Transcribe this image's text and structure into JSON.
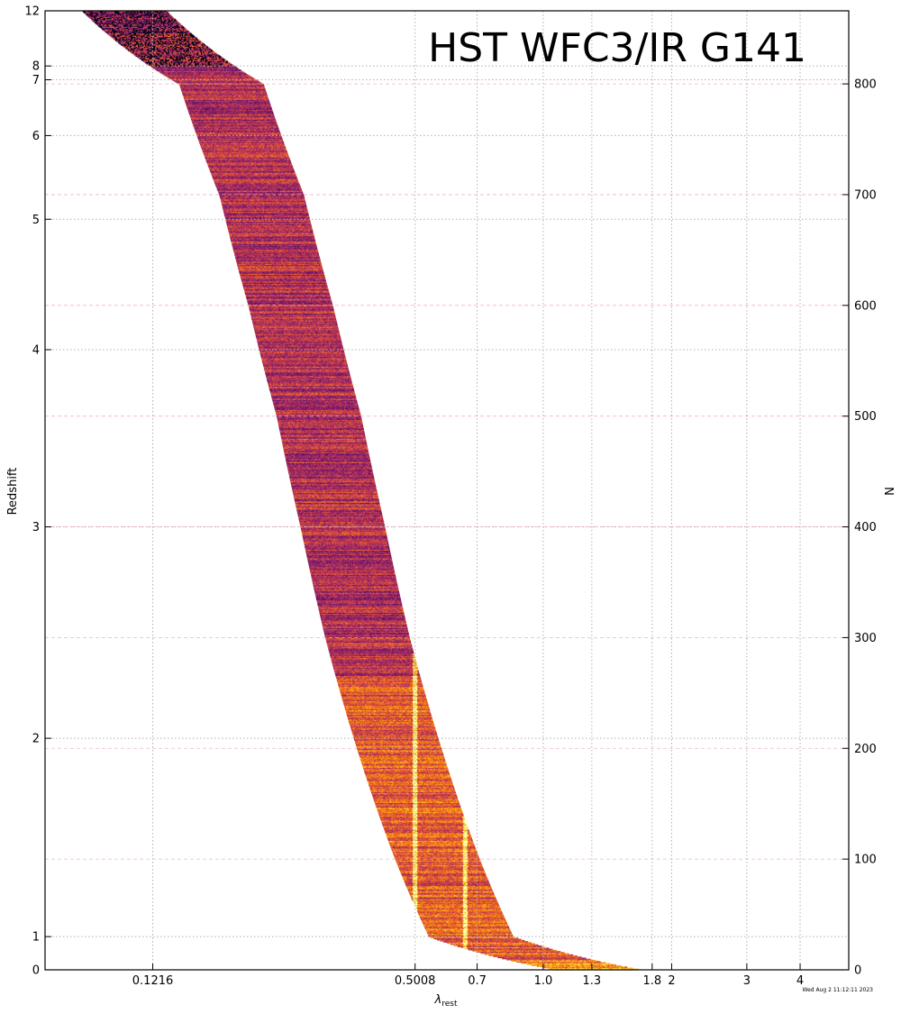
{
  "chart_data": {
    "type": "heatmap",
    "title": "HST WFC3/IR G141",
    "xlabel": "λ",
    "xlabel_subscript": "rest",
    "ylabel": "Redshift",
    "ylabel_right": "N",
    "timestamp": "Wed Aug  2 11:12:11 2023",
    "x_scale": "log",
    "xlim": [
      0.068,
      5.2
    ],
    "x_ticks": [
      {
        "value": 0.1216,
        "label": "0.1216"
      },
      {
        "value": 0.5008,
        "label": "0.5008"
      },
      {
        "value": 0.7,
        "label": "0.7"
      },
      {
        "value": 1.0,
        "label": "1.0"
      },
      {
        "value": 1.3,
        "label": "1.3"
      },
      {
        "value": 1.8,
        "label": "1.8"
      },
      {
        "value": 2.0,
        "label": "2"
      },
      {
        "value": 3.0,
        "label": "3"
      },
      {
        "value": 4.0,
        "label": "4"
      }
    ],
    "y_left_ticks": [
      {
        "z": 0,
        "label": "0"
      },
      {
        "z": 1,
        "label": "1"
      },
      {
        "z": 2,
        "label": "2"
      },
      {
        "z": 3,
        "label": "3"
      },
      {
        "z": 4,
        "label": "4"
      },
      {
        "z": 5,
        "label": "5"
      },
      {
        "z": 6,
        "label": "6"
      },
      {
        "z": 7,
        "label": "7"
      },
      {
        "z": 8,
        "label": "8"
      },
      {
        "z": 12,
        "label": "12"
      }
    ],
    "n_total": 866,
    "y_right_ticks": [
      0,
      100,
      200,
      300,
      400,
      500,
      600,
      700,
      800
    ],
    "redshift_at_n": [
      [
        0,
        0.0
      ],
      [
        30,
        1.0
      ],
      [
        100,
        1.4
      ],
      [
        200,
        1.95
      ],
      [
        300,
        2.5
      ],
      [
        400,
        3.0
      ],
      [
        500,
        3.55
      ],
      [
        600,
        4.3
      ],
      [
        700,
        5.2
      ],
      [
        800,
        6.7
      ],
      [
        866,
        12.0
      ]
    ],
    "observed_range_um": [
      1.08,
      1.7
    ],
    "emission_lines_rest_um": [
      0.5008,
      0.6565
    ],
    "colormap": [
      "#000004",
      "#1b0c41",
      "#4a0c6b",
      "#781c6d",
      "#a52c60",
      "#cf4446",
      "#ed6925",
      "#fb9b06",
      "#f7d13d",
      "#fcffa4"
    ],
    "grid": true
  }
}
